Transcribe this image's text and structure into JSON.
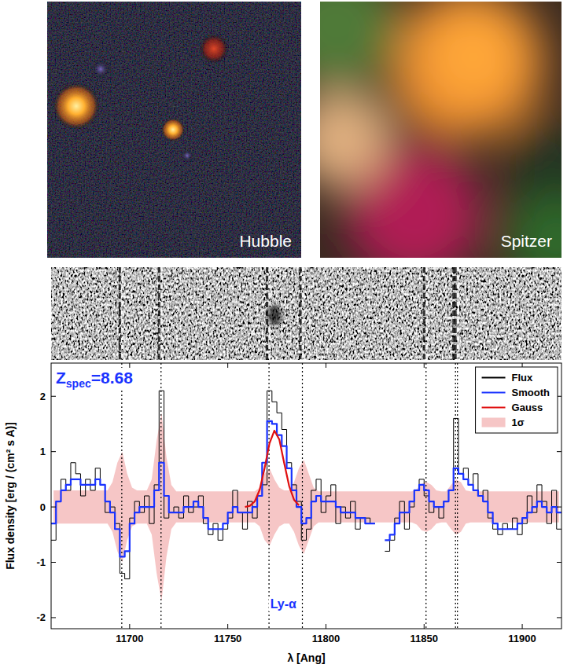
{
  "images": [
    {
      "label": "Hubble"
    },
    {
      "label": "Spitzer"
    }
  ],
  "chart_data": {
    "type": "line",
    "x_label": "λ [Ang]",
    "y_label": "Flux density  [erg / (cm² s A)]",
    "redshift": {
      "symbol": "Z",
      "subscript": "spec",
      "text": "=8.68"
    },
    "annotations": [
      {
        "text": "Ly-α"
      }
    ],
    "xlim": [
      11660,
      11920
    ],
    "ylim": [
      -2.2,
      2.6
    ],
    "xticks": [
      11700,
      11750,
      11800,
      11850,
      11900
    ],
    "yticks": [
      -2,
      -1,
      0,
      1,
      2
    ],
    "grid": false,
    "legend": "upper right",
    "vlines": [
      11696,
      11716,
      11771,
      11788,
      11851,
      11866,
      11867
    ],
    "x": [
      11661.25,
      11663.75,
      11666.25,
      11668.75,
      11671.25,
      11673.75,
      11676.25,
      11678.75,
      11681.25,
      11683.75,
      11686.25,
      11688.75,
      11691.25,
      11693.75,
      11696.25,
      11698.75,
      11701.25,
      11703.75,
      11706.25,
      11708.75,
      11711.25,
      11713.75,
      11716.25,
      11718.75,
      11721.25,
      11723.75,
      11726.25,
      11728.75,
      11731.25,
      11733.75,
      11736.25,
      11738.75,
      11741.25,
      11743.75,
      11746.25,
      11748.75,
      11751.25,
      11753.75,
      11756.25,
      11758.75,
      11761.25,
      11763.75,
      11766.25,
      11768.75,
      11771.25,
      11773.75,
      11776.25,
      11778.75,
      11781.25,
      11783.75,
      11786.25,
      11788.75,
      11791.25,
      11793.75,
      11796.25,
      11798.75,
      11801.25,
      11803.75,
      11806.25,
      11808.75,
      11811.25,
      11813.75,
      11816.25,
      11818.75,
      11821.25,
      11823.75,
      11826.25,
      11828.75,
      11831.25,
      11833.75,
      11836.25,
      11838.75,
      11841.25,
      11843.75,
      11846.25,
      11848.75,
      11851.25,
      11853.75,
      11856.25,
      11858.75,
      11861.25,
      11863.75,
      11866.25,
      11868.75,
      11871.25,
      11873.75,
      11876.25,
      11878.75,
      11881.25,
      11883.75,
      11886.25,
      11888.75,
      11891.25,
      11893.75,
      11896.25,
      11898.75,
      11901.25,
      11903.75,
      11906.25,
      11908.75,
      11911.25,
      11913.75,
      11916.25,
      11918.75
    ],
    "series": [
      {
        "name": "1σ",
        "type": "band",
        "color": "#f5bcbc",
        "values": [
          0.3,
          0.3,
          0.3,
          0.3,
          0.3,
          0.3,
          0.3,
          0.3,
          0.3,
          0.3,
          0.3,
          0.3,
          0.45,
          0.8,
          1.0,
          0.6,
          0.35,
          0.3,
          0.3,
          0.3,
          0.5,
          1.2,
          1.7,
          0.9,
          0.4,
          0.28,
          0.28,
          0.28,
          0.28,
          0.28,
          0.28,
          0.28,
          0.28,
          0.28,
          0.28,
          0.28,
          0.28,
          0.28,
          0.28,
          0.28,
          0.28,
          0.28,
          0.35,
          0.6,
          0.7,
          0.5,
          0.35,
          0.3,
          0.3,
          0.45,
          0.7,
          0.85,
          0.6,
          0.35,
          0.28,
          0.28,
          0.28,
          0.28,
          0.28,
          0.28,
          0.28,
          0.28,
          0.28,
          0.28,
          0.28,
          0.28,
          0.28,
          0.28,
          0.28,
          0.28,
          0.28,
          0.28,
          0.28,
          0.28,
          0.32,
          0.42,
          0.45,
          0.4,
          0.3,
          0.28,
          0.28,
          0.4,
          0.5,
          0.45,
          0.3,
          0.28,
          0.28,
          0.28,
          0.28,
          0.28,
          0.28,
          0.28,
          0.28,
          0.28,
          0.28,
          0.28,
          0.28,
          0.28,
          0.28,
          0.28,
          0.28,
          0.28,
          0.28,
          0.28
        ]
      },
      {
        "name": "Flux",
        "type": "line",
        "line_style": "step",
        "color": "#000000",
        "values": [
          -0.6,
          0.1,
          0.5,
          0.3,
          0.8,
          0.6,
          0.2,
          0.5,
          0.3,
          0.7,
          0.4,
          -0.1,
          0.0,
          -0.3,
          -1.2,
          -1.3,
          -0.2,
          0.1,
          -0.1,
          0.2,
          -0.3,
          0.4,
          2.1,
          -0.2,
          -0.1,
          0.0,
          -0.2,
          0.2,
          -0.1,
          0.0,
          0.2,
          -0.3,
          -0.5,
          -0.3,
          -0.6,
          -0.4,
          -0.2,
          0.3,
          -0.1,
          -0.4,
          0.1,
          -0.2,
          0.2,
          0.4,
          2.1,
          1.9,
          1.7,
          1.4,
          0.8,
          0.4,
          0.1,
          -0.6,
          -0.4,
          0.3,
          0.5,
          -0.1,
          0.2,
          0.4,
          -0.3,
          0.0,
          -0.2,
          0.1,
          -0.4,
          -0.2,
          -0.2,
          -0.3,
          null,
          null,
          -0.8,
          -0.6,
          -0.2,
          0.1,
          -0.4,
          0.0,
          0.3,
          0.5,
          0.2,
          -0.1,
          0.0,
          -0.2,
          0.1,
          0.3,
          1.6,
          0.6,
          0.7,
          0.4,
          0.6,
          0.2,
          0.3,
          -0.2,
          -0.4,
          -0.5,
          -0.3,
          -0.4,
          -0.2,
          -0.5,
          -0.3,
          0.2,
          -0.1,
          0.4,
          0.1,
          -0.3,
          0.3,
          -0.4
        ]
      },
      {
        "name": "Smooth",
        "type": "line",
        "line_style": "step",
        "color": "#1a33ff",
        "values": [
          -0.3,
          0.1,
          0.3,
          0.4,
          0.5,
          0.5,
          0.4,
          0.4,
          0.4,
          0.5,
          0.4,
          0.1,
          -0.1,
          -0.4,
          -0.9,
          -0.8,
          -0.3,
          -0.1,
          0.0,
          0.0,
          0.0,
          0.3,
          0.8,
          0.2,
          -0.1,
          -0.1,
          -0.1,
          0.0,
          0.0,
          0.1,
          0.0,
          -0.2,
          -0.4,
          -0.4,
          -0.4,
          -0.3,
          -0.1,
          0.0,
          -0.1,
          -0.1,
          -0.1,
          0.0,
          0.2,
          0.8,
          1.55,
          1.5,
          1.3,
          1.1,
          0.7,
          0.3,
          0.0,
          -0.3,
          -0.2,
          0.1,
          0.2,
          0.1,
          0.1,
          0.1,
          0.0,
          -0.1,
          -0.1,
          -0.1,
          -0.2,
          -0.2,
          -0.3,
          -0.3,
          null,
          null,
          -0.6,
          -0.5,
          -0.3,
          -0.1,
          -0.1,
          0.1,
          0.3,
          0.4,
          0.3,
          0.1,
          0.0,
          0.0,
          0.1,
          0.3,
          0.7,
          0.6,
          0.5,
          0.4,
          0.3,
          0.2,
          0.1,
          -0.1,
          -0.3,
          -0.4,
          -0.4,
          -0.4,
          -0.4,
          -0.3,
          -0.2,
          -0.1,
          0.0,
          0.1,
          0.0,
          -0.1,
          0.0,
          -0.1
        ]
      },
      {
        "name": "Gauss",
        "type": "line",
        "line_style": "solid",
        "color": "#e01010",
        "values": [
          null,
          null,
          null,
          null,
          null,
          null,
          null,
          null,
          null,
          null,
          null,
          null,
          null,
          null,
          null,
          null,
          null,
          null,
          null,
          null,
          null,
          null,
          null,
          null,
          null,
          null,
          null,
          null,
          null,
          null,
          null,
          null,
          null,
          null,
          null,
          null,
          null,
          null,
          null,
          0.0,
          0.02,
          0.1,
          0.31,
          0.7,
          1.15,
          1.38,
          1.22,
          0.79,
          0.38,
          0.13,
          0.03,
          null,
          null,
          null,
          null,
          null,
          null,
          null,
          null,
          null,
          null,
          null,
          null,
          null,
          null,
          null,
          null,
          null,
          null,
          null,
          null,
          null,
          null,
          null,
          null,
          null,
          null,
          null,
          null,
          null,
          null,
          null,
          null,
          null,
          null,
          null,
          null,
          null,
          null,
          null,
          null,
          null,
          null,
          null,
          null,
          null,
          null,
          null,
          null,
          null,
          null,
          null,
          null,
          null
        ]
      }
    ]
  }
}
